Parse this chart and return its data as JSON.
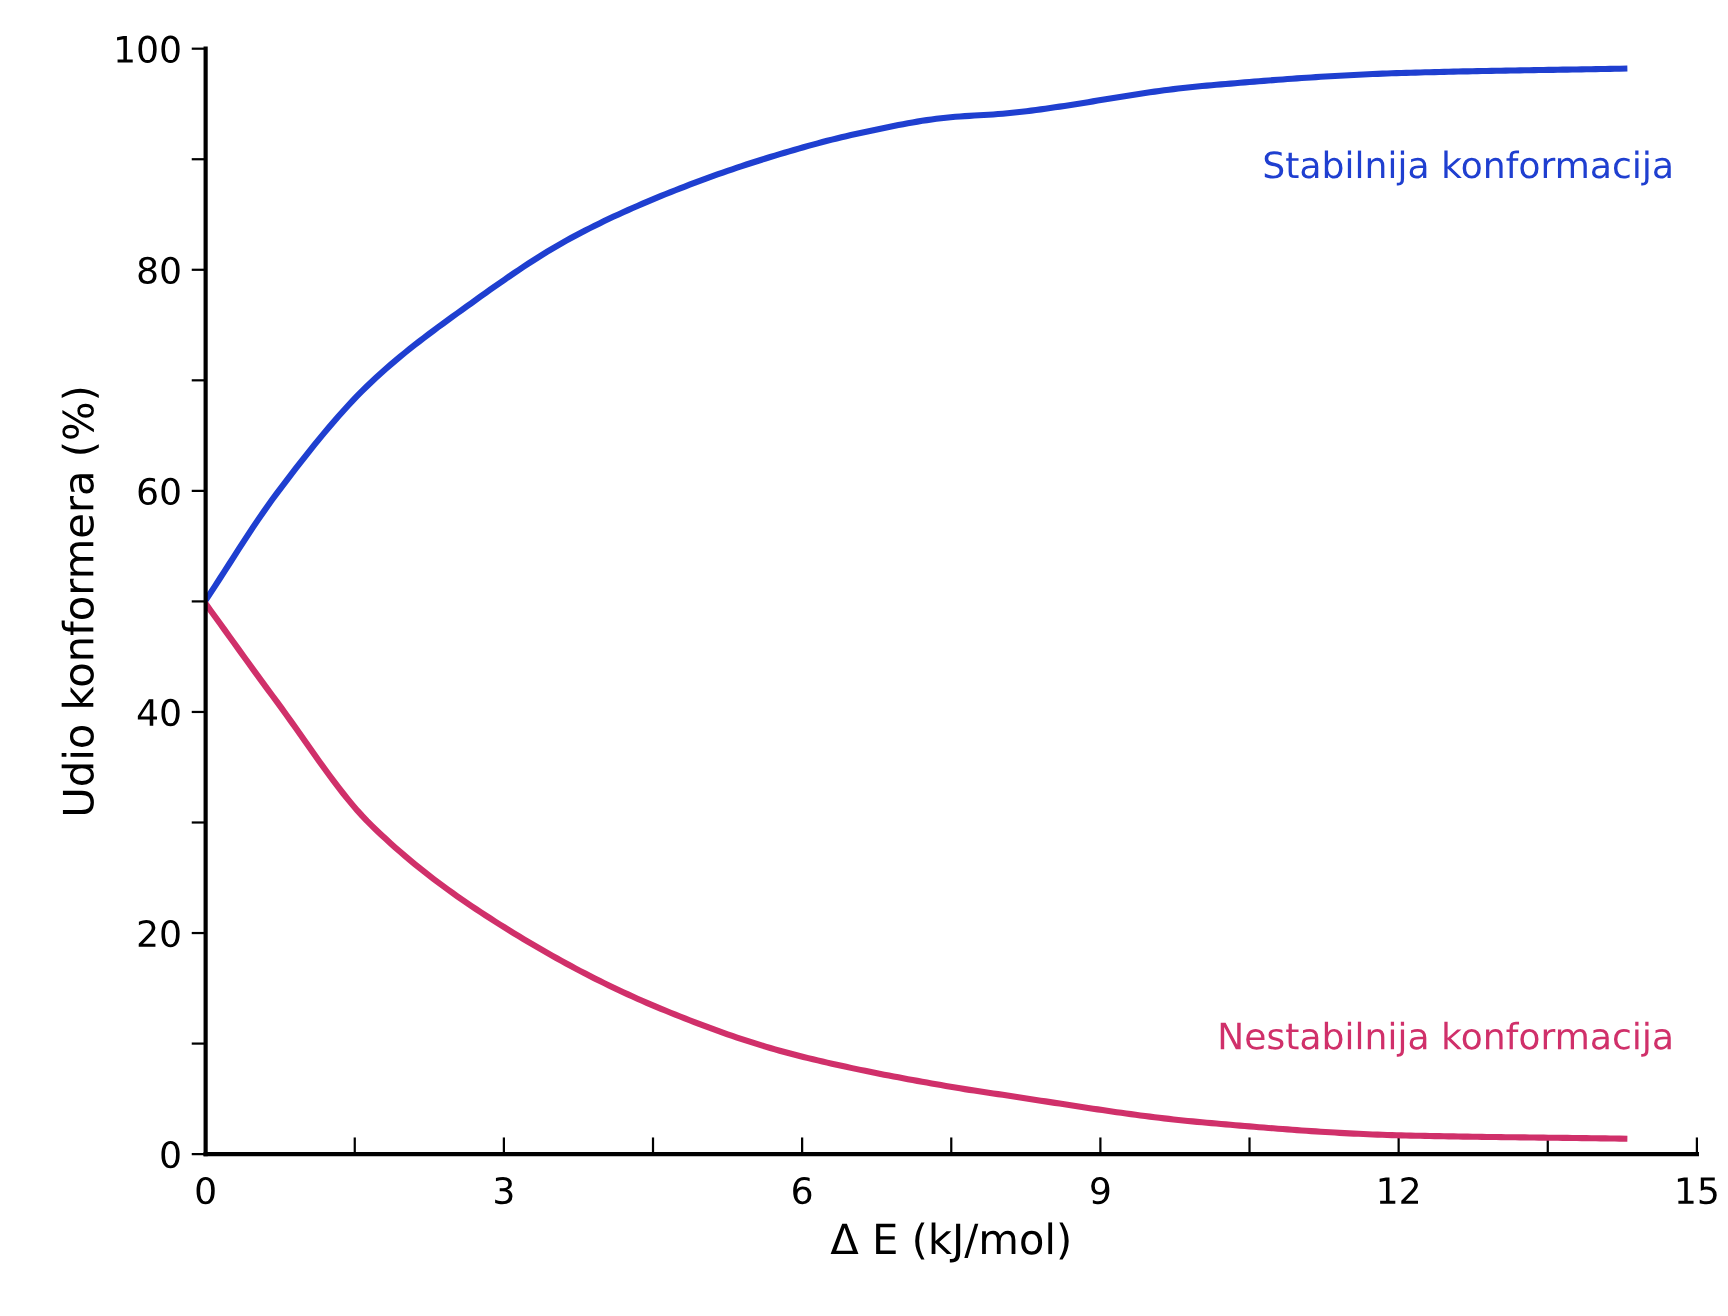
{
  "chart_data": {
    "type": "line",
    "xlabel": "Δ E (kJ/mol)",
    "ylabel": "Udio konformera (%)",
    "xlim": [
      0,
      15
    ],
    "ylim": [
      0,
      100
    ],
    "xticks": [
      0,
      {
        "value": 1.5,
        "label": null
      },
      3,
      {
        "value": 4.5,
        "label": null
      },
      6,
      {
        "value": 7.5,
        "label": null
      },
      9,
      {
        "value": 10.5,
        "label": null
      },
      12,
      {
        "value": 13.5,
        "label": null
      },
      15
    ],
    "yticks": [
      0,
      {
        "value": 10,
        "label": null
      },
      20,
      {
        "value": 30,
        "label": null
      },
      40,
      {
        "value": 50,
        "label": null
      },
      60,
      {
        "value": 70,
        "label": null
      },
      80,
      {
        "value": 90,
        "label": null
      },
      100
    ],
    "grid": false,
    "legend": false,
    "marker": "none",
    "line_style": "solid",
    "series": [
      {
        "name": "Stabilnija konformacija",
        "color": "#1f3fd0",
        "x": [
          0,
          0.71,
          1.65,
          2.66,
          3.66,
          4.67,
          5.68,
          6.55,
          7.49,
          7.99,
          10.0,
          12.02,
          14.27
        ],
        "values": [
          50.1,
          59.7,
          69.7,
          76.9,
          82.8,
          87.0,
          90.2,
          92.3,
          93.8,
          94.1,
          96.6,
          97.8,
          98.2
        ]
      },
      {
        "name": "Nestabilnija konformacija",
        "color": "#d0306a",
        "x": [
          0,
          0.71,
          1.65,
          2.99,
          4.54,
          5.88,
          7.49,
          7.99,
          10.0,
          12.02,
          14.27
        ],
        "values": [
          49.8,
          41.0,
          29.9,
          20.6,
          13.3,
          9.1,
          6.1,
          5.4,
          2.9,
          1.7,
          1.4
        ]
      }
    ]
  }
}
